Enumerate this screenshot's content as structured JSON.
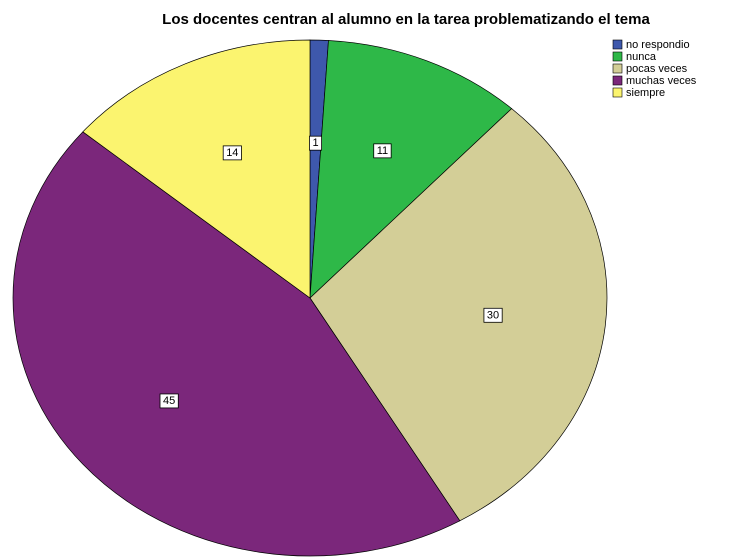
{
  "chart_data": {
    "type": "pie",
    "title": "Los docentes centran al alumno en la tarea problematizando el tema",
    "categories": [
      "no respondio",
      "nunca",
      "pocas veces",
      "muchas veces",
      "siempre"
    ],
    "values": [
      1,
      11,
      30,
      45,
      14
    ],
    "colors": [
      "#3e58ac",
      "#2eb848",
      "#d3ce97",
      "#7b277b",
      "#fbf46f"
    ],
    "legend": "top-right"
  }
}
